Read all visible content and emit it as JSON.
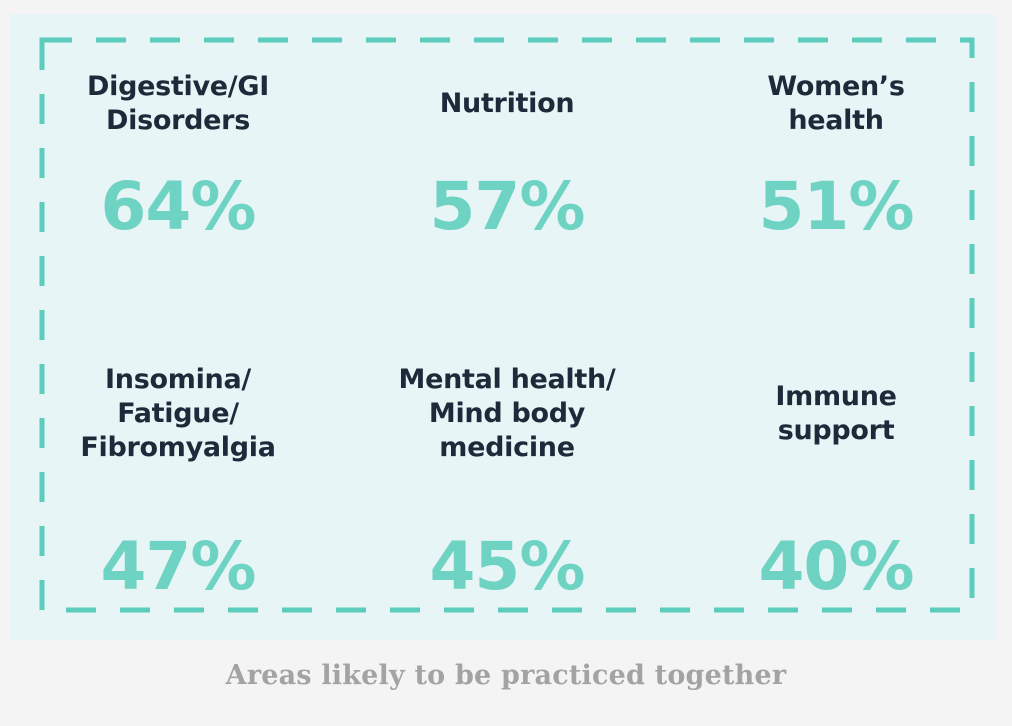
{
  "chart_data": {
    "type": "table",
    "title": "",
    "caption": "Areas likely to be practiced together",
    "categories": [
      "Digestive/GI\nDisorders",
      "Nutrition",
      "Women’s\nhealth",
      "Insomina/\nFatigue/\nFibromyalgia",
      "Mental health/\nMind body\nmedicine",
      "Immune\nsupport"
    ],
    "values": [
      64,
      57,
      51,
      47,
      45,
      40
    ],
    "value_labels": [
      "64%",
      "57%",
      "51%",
      "47%",
      "45%",
      "40%"
    ],
    "unit": "%"
  },
  "colors": {
    "background": "#e8f5f6",
    "accent": "#6fd3c3",
    "label_text": "#1e2a3a",
    "caption_text": "#a3a3a3"
  }
}
